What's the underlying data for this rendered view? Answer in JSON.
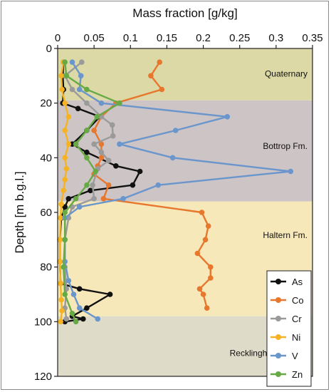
{
  "chart_data": {
    "type": "line",
    "title": "",
    "xlabel": "Mass fraction [g/kg]",
    "ylabel": "Depth [m b.g.l.]",
    "xlim": [
      0,
      0.35
    ],
    "ylim": [
      0,
      120
    ],
    "y_inverted": true,
    "x_ticks": [
      "0",
      "0.05",
      "0.1",
      "0.15",
      "0.2",
      "0.25",
      "0.3",
      "0.35"
    ],
    "y_ticks": [
      "0",
      "20",
      "40",
      "60",
      "80",
      "100",
      "120"
    ],
    "grid": false,
    "legend_position": "bottom-right",
    "zones": [
      {
        "label": "Quaternary",
        "from": 0,
        "to": 19,
        "color": "#dcd9a6"
      },
      {
        "label": "Bottrop Fm.",
        "from": 19,
        "to": 56,
        "color": "#cdc4c6"
      },
      {
        "label": "Haltern Fm.",
        "from": 56,
        "to": 98,
        "color": "#f6e8b9"
      },
      {
        "label": "Recklinghausen Fm.",
        "from": 98,
        "to": 120,
        "color": "#dedbc9"
      }
    ],
    "series": [
      {
        "name": "As",
        "color": "#111111",
        "points": [
          [
            0.008,
            5
          ],
          [
            0.007,
            10
          ],
          [
            0.008,
            15
          ],
          [
            0.007,
            20
          ],
          [
            0.028,
            22
          ],
          [
            0.058,
            25
          ],
          [
            0.04,
            30
          ],
          [
            0.02,
            35
          ],
          [
            0.04,
            38
          ],
          [
            0.08,
            43
          ],
          [
            0.113,
            45
          ],
          [
            0.103,
            50
          ],
          [
            0.045,
            52
          ],
          [
            0.015,
            55
          ],
          [
            0.01,
            58
          ],
          [
            0.005,
            62
          ],
          [
            0.003,
            70
          ],
          [
            0.003,
            78
          ],
          [
            0.004,
            86
          ],
          [
            0.03,
            88
          ],
          [
            0.072,
            90
          ],
          [
            0.04,
            95
          ],
          [
            0.02,
            98
          ],
          [
            0.035,
            99
          ],
          [
            0.01,
            100
          ]
        ]
      },
      {
        "name": "Co",
        "color": "#e8772e",
        "points": [
          [
            0.14,
            5
          ],
          [
            0.128,
            10
          ],
          [
            0.143,
            15
          ],
          [
            0.08,
            20
          ],
          [
            0.06,
            25
          ],
          [
            0.05,
            30
          ],
          [
            0.06,
            35
          ],
          [
            0.06,
            40
          ],
          [
            0.055,
            43
          ],
          [
            0.05,
            46
          ],
          [
            0.07,
            50
          ],
          [
            0.063,
            55
          ],
          [
            0.198,
            60
          ],
          [
            0.207,
            65
          ],
          [
            0.203,
            70
          ],
          [
            0.192,
            75
          ],
          [
            0.21,
            80
          ],
          [
            0.21,
            84
          ],
          [
            0.195,
            88
          ],
          [
            0.2,
            90
          ],
          [
            0.205,
            95
          ]
        ]
      },
      {
        "name": "Cr",
        "color": "#9a9a9a",
        "points": [
          [
            0.033,
            5
          ],
          [
            0.01,
            10
          ],
          [
            0.02,
            15
          ],
          [
            0.04,
            20
          ],
          [
            0.06,
            25
          ],
          [
            0.075,
            28
          ],
          [
            0.076,
            32
          ],
          [
            0.05,
            35
          ],
          [
            0.06,
            38
          ],
          [
            0.07,
            41
          ],
          [
            0.055,
            44
          ],
          [
            0.048,
            50
          ],
          [
            0.05,
            55
          ],
          [
            0.02,
            58
          ],
          [
            0.015,
            62
          ],
          [
            0.01,
            70
          ],
          [
            0.01,
            80
          ],
          [
            0.012,
            88
          ],
          [
            0.01,
            95
          ],
          [
            0.012,
            99
          ]
        ]
      },
      {
        "name": "Ni",
        "color": "#f5b324",
        "points": [
          [
            0.008,
            5
          ],
          [
            0.005,
            10
          ],
          [
            0.006,
            15
          ],
          [
            0.01,
            20
          ],
          [
            0.015,
            25
          ],
          [
            0.01,
            30
          ],
          [
            0.015,
            35
          ],
          [
            0.01,
            40
          ],
          [
            0.012,
            44
          ],
          [
            0.01,
            48
          ],
          [
            0.008,
            52
          ],
          [
            0.005,
            57
          ],
          [
            0.004,
            62
          ],
          [
            0.003,
            70
          ],
          [
            0.003,
            78
          ],
          [
            0.004,
            86
          ],
          [
            0.005,
            92
          ],
          [
            0.006,
            96
          ],
          [
            0.004,
            100
          ]
        ]
      },
      {
        "name": "V",
        "color": "#6a96cc",
        "points": [
          [
            0.02,
            5
          ],
          [
            0.032,
            10
          ],
          [
            0.03,
            15
          ],
          [
            0.06,
            20
          ],
          [
            0.233,
            25
          ],
          [
            0.162,
            30
          ],
          [
            0.085,
            35
          ],
          [
            0.158,
            40
          ],
          [
            0.32,
            45
          ],
          [
            0.138,
            50
          ],
          [
            0.09,
            55
          ],
          [
            0.03,
            58
          ],
          [
            0.01,
            62
          ],
          [
            0.01,
            70
          ],
          [
            0.01,
            78
          ],
          [
            0.015,
            85
          ],
          [
            0.022,
            90
          ],
          [
            0.03,
            95
          ],
          [
            0.055,
            99
          ]
        ]
      },
      {
        "name": "Zn",
        "color": "#67aa45",
        "points": [
          [
            0.01,
            5
          ],
          [
            0.012,
            10
          ],
          [
            0.04,
            15
          ],
          [
            0.085,
            20
          ],
          [
            0.054,
            25
          ],
          [
            0.04,
            30
          ],
          [
            0.025,
            35
          ],
          [
            0.04,
            40
          ],
          [
            0.052,
            45
          ],
          [
            0.04,
            50
          ],
          [
            0.025,
            55
          ],
          [
            0.01,
            60
          ],
          [
            0.01,
            70
          ],
          [
            0.008,
            80
          ],
          [
            0.01,
            90
          ],
          [
            0.02,
            97
          ],
          [
            0.025,
            100
          ]
        ]
      }
    ]
  }
}
